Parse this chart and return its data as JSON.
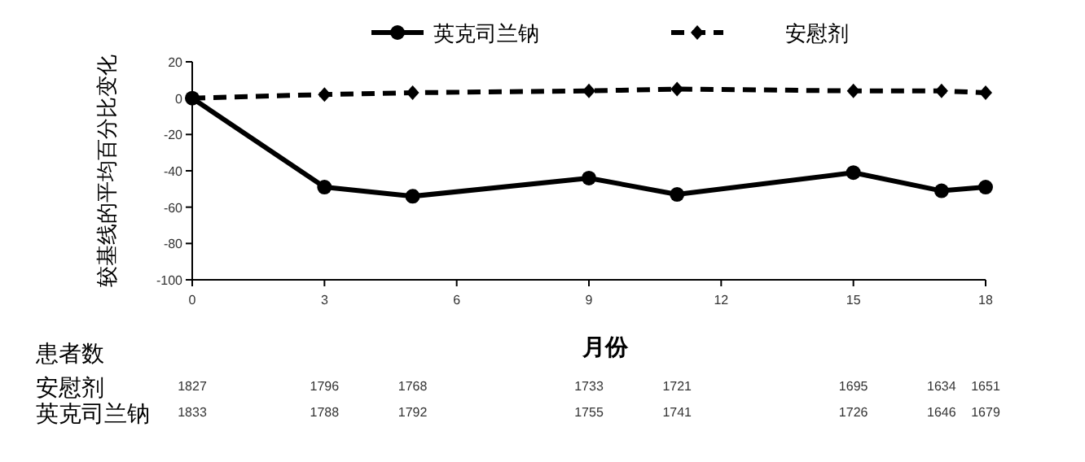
{
  "chart_data": [
    {
      "type": "line",
      "xlabel": "月份",
      "ylabel": "较基线的平均百分比变化",
      "x": [
        0,
        3,
        5,
        9,
        11,
        15,
        17,
        18
      ],
      "xlim": [
        0,
        18
      ],
      "xticks": [
        0,
        3,
        6,
        9,
        12,
        15,
        18
      ],
      "ylim": [
        -100,
        20
      ],
      "yticks": [
        -100,
        -80,
        -60,
        -40,
        -20,
        0,
        20
      ],
      "grid": false,
      "legend": "top",
      "series": [
        {
          "name": "英克司兰钠",
          "color": "#000000",
          "marker": "circle",
          "line_style": "solid",
          "values": [
            0,
            -49,
            -54,
            -44,
            -53,
            -41,
            -51,
            -49
          ]
        },
        {
          "name": "安慰剂",
          "color": "#000000",
          "marker": "diamond",
          "line_style": "dashed",
          "values": [
            0,
            2,
            3,
            4,
            5,
            4,
            4,
            3
          ]
        }
      ]
    },
    {
      "type": "other",
      "title": "患者数",
      "annotations": [
        "安慰剂",
        "1827",
        "1796",
        "1768",
        "1733",
        "1721",
        "1695",
        "1634",
        "1651",
        "英克司兰钠",
        "1833",
        "1788",
        "1792",
        "1755",
        "1741",
        "1726",
        "1646",
        "1679"
      ]
    }
  ]
}
